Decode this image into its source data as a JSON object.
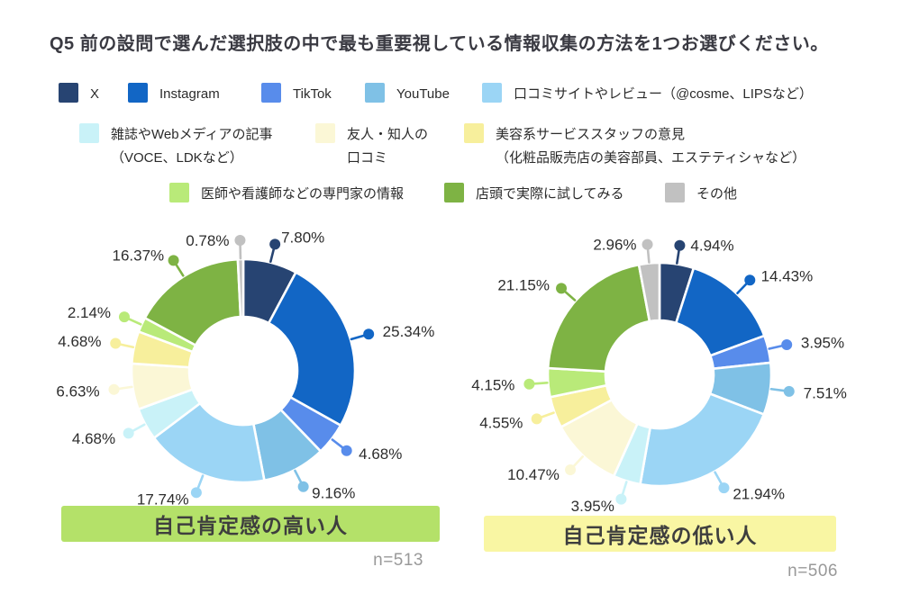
{
  "title": {
    "text": "Q5 前の設問で選んだ選択肢の中で最も重要視している情報収集の方法を1つお選びください。"
  },
  "legend": {
    "items": [
      {
        "label": "X",
        "color": "#274472"
      },
      {
        "label": "Instagram",
        "color": "#1266c5"
      },
      {
        "label": "TikTok",
        "color": "#588ceb"
      },
      {
        "label": "YouTube",
        "color": "#7fc1e6"
      },
      {
        "label": "口コミサイトやレビュー（@cosme、LIPSなど）",
        "color": "#9bd5f5"
      },
      {
        "label": "雑誌やWebメディアの記事",
        "label2": "（VOCE、LDKなど）",
        "color": "#c9f2f8"
      },
      {
        "label": "友人・知人の",
        "label2": "口コミ",
        "color": "#fbf7d6"
      },
      {
        "label": "美容系サービススタッフの意見",
        "label2": "（化粧品販売店の美容部員、エステティシャなど）",
        "color": "#f7ef9c"
      },
      {
        "label": "医師や看護師などの専門家の情報",
        "color": "#b9ea79"
      },
      {
        "label": "店頭で実際に試してみる",
        "color": "#7eb344"
      },
      {
        "label": "その他",
        "color": "#c1c1c1"
      }
    ]
  },
  "chart_data": {
    "type": "pie",
    "subtype": "donut",
    "start_angle_deg": 0,
    "direction": "clockwise",
    "categories": [
      "X",
      "Instagram",
      "TikTok",
      "YouTube",
      "口コミサイトやレビュー（@cosme、LIPSなど）",
      "雑誌やWebメディアの記事（VOCE、LDKなど）",
      "友人・知人の口コミ",
      "美容系サービススタッフの意見（化粧品販売店の美容部員、エステティシャなど）",
      "医師や看護師などの専門家の情報",
      "店頭で実際に試してみる",
      "その他"
    ],
    "colors": [
      "#274472",
      "#1266c5",
      "#588ceb",
      "#7fc1e6",
      "#9bd5f5",
      "#c9f2f8",
      "#fbf7d6",
      "#f7ef9c",
      "#b9ea79",
      "#7eb344",
      "#c1c1c1"
    ],
    "charts": [
      {
        "name": "自己肯定感の高い人",
        "n_label": "n=513",
        "values": [
          7.8,
          25.34,
          4.68,
          9.16,
          17.74,
          4.68,
          6.63,
          4.68,
          2.14,
          16.37,
          0.78
        ]
      },
      {
        "name": "自己肯定感の低い人",
        "n_label": "n=506",
        "values": [
          4.94,
          14.43,
          3.95,
          7.51,
          21.94,
          3.95,
          10.47,
          4.55,
          4.15,
          21.15,
          2.96
        ]
      }
    ]
  }
}
